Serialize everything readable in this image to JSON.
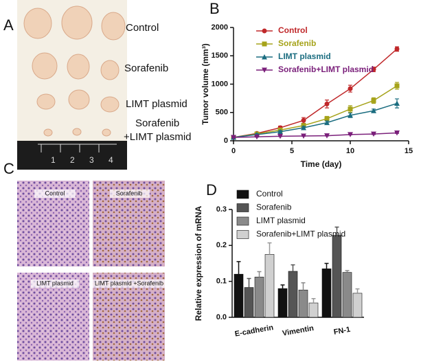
{
  "panel_a": {
    "panel": "A",
    "labels": [
      "Control",
      "Sorafenib",
      "LIMT plasmid",
      "Sorafenib",
      "+LIMT plasmid"
    ],
    "ruler_labels": [
      "1",
      "2",
      "3",
      "4"
    ]
  },
  "panel_c": {
    "panel": "C",
    "captions": [
      "Control",
      "Sorafenib",
      "LIMT plasmid",
      "LIMT plasmid +Sorafenib"
    ]
  },
  "chart_data": [
    {
      "type": "line",
      "panel": "B",
      "x_label": "Time (day)",
      "y_label": "Tumor volume (mm³)",
      "x": [
        0,
        2,
        4,
        6,
        8,
        10,
        12,
        14
      ],
      "xlim": [
        0,
        15
      ],
      "xticks": [
        0,
        5,
        10,
        15
      ],
      "ylim": [
        0,
        2000
      ],
      "yticks": [
        0,
        500,
        1000,
        1500,
        2000
      ],
      "legend": "upper-left",
      "series": [
        {
          "name": "Control",
          "color": "#c0282a",
          "marker": "circle",
          "values": [
            60,
            130,
            230,
            360,
            650,
            920,
            1260,
            1620
          ],
          "errors": [
            20,
            20,
            30,
            50,
            70,
            60,
            40,
            40
          ]
        },
        {
          "name": "Sorafenib",
          "color": "#a6a31a",
          "marker": "square",
          "values": [
            60,
            120,
            190,
            270,
            390,
            560,
            710,
            970
          ],
          "errors": [
            15,
            15,
            20,
            30,
            40,
            60,
            50,
            60
          ]
        },
        {
          "name": "LIMT plasmid",
          "color": "#1b6d80",
          "marker": "triangle-up",
          "values": [
            60,
            110,
            160,
            230,
            320,
            450,
            530,
            660
          ],
          "errors": [
            10,
            15,
            20,
            25,
            30,
            40,
            30,
            80
          ]
        },
        {
          "name": "Sorafenib+LIMT plasmid",
          "color": "#7a1f7a",
          "marker": "triangle-down",
          "values": [
            60,
            70,
            80,
            85,
            90,
            110,
            120,
            140
          ],
          "errors": [
            5,
            5,
            5,
            5,
            5,
            5,
            10,
            10
          ]
        }
      ]
    },
    {
      "type": "bar",
      "panel": "D",
      "y_label": "Relative expression of mRNA",
      "categories": [
        "E-cadherin",
        "Vimentin",
        "FN-1"
      ],
      "ylim": [
        0,
        0.3
      ],
      "yticks": [
        {
          "value": 0,
          "label": "0.0"
        },
        0.1,
        0.2,
        0.3
      ],
      "legend": "upper-left",
      "series": [
        {
          "name": "Control",
          "color": "#111111",
          "values": [
            0.12,
            0.08,
            0.135
          ],
          "errors": [
            0.035,
            0.01,
            0.015
          ]
        },
        {
          "name": "Sorafenib",
          "color": "#555555",
          "values": [
            0.083,
            0.128,
            0.228
          ],
          "errors": [
            0.025,
            0.018,
            0.023
          ]
        },
        {
          "name": "LIMT plasmid",
          "color": "#8a8a8a",
          "values": [
            0.112,
            0.076,
            0.125
          ],
          "errors": [
            0.015,
            0.02,
            0.005
          ]
        },
        {
          "name": "Sorafenib+LIMT plasmid",
          "color": "#d0d0d0",
          "values": [
            0.175,
            0.04,
            0.067
          ],
          "errors": [
            0.032,
            0.012,
            0.012
          ]
        }
      ]
    }
  ]
}
